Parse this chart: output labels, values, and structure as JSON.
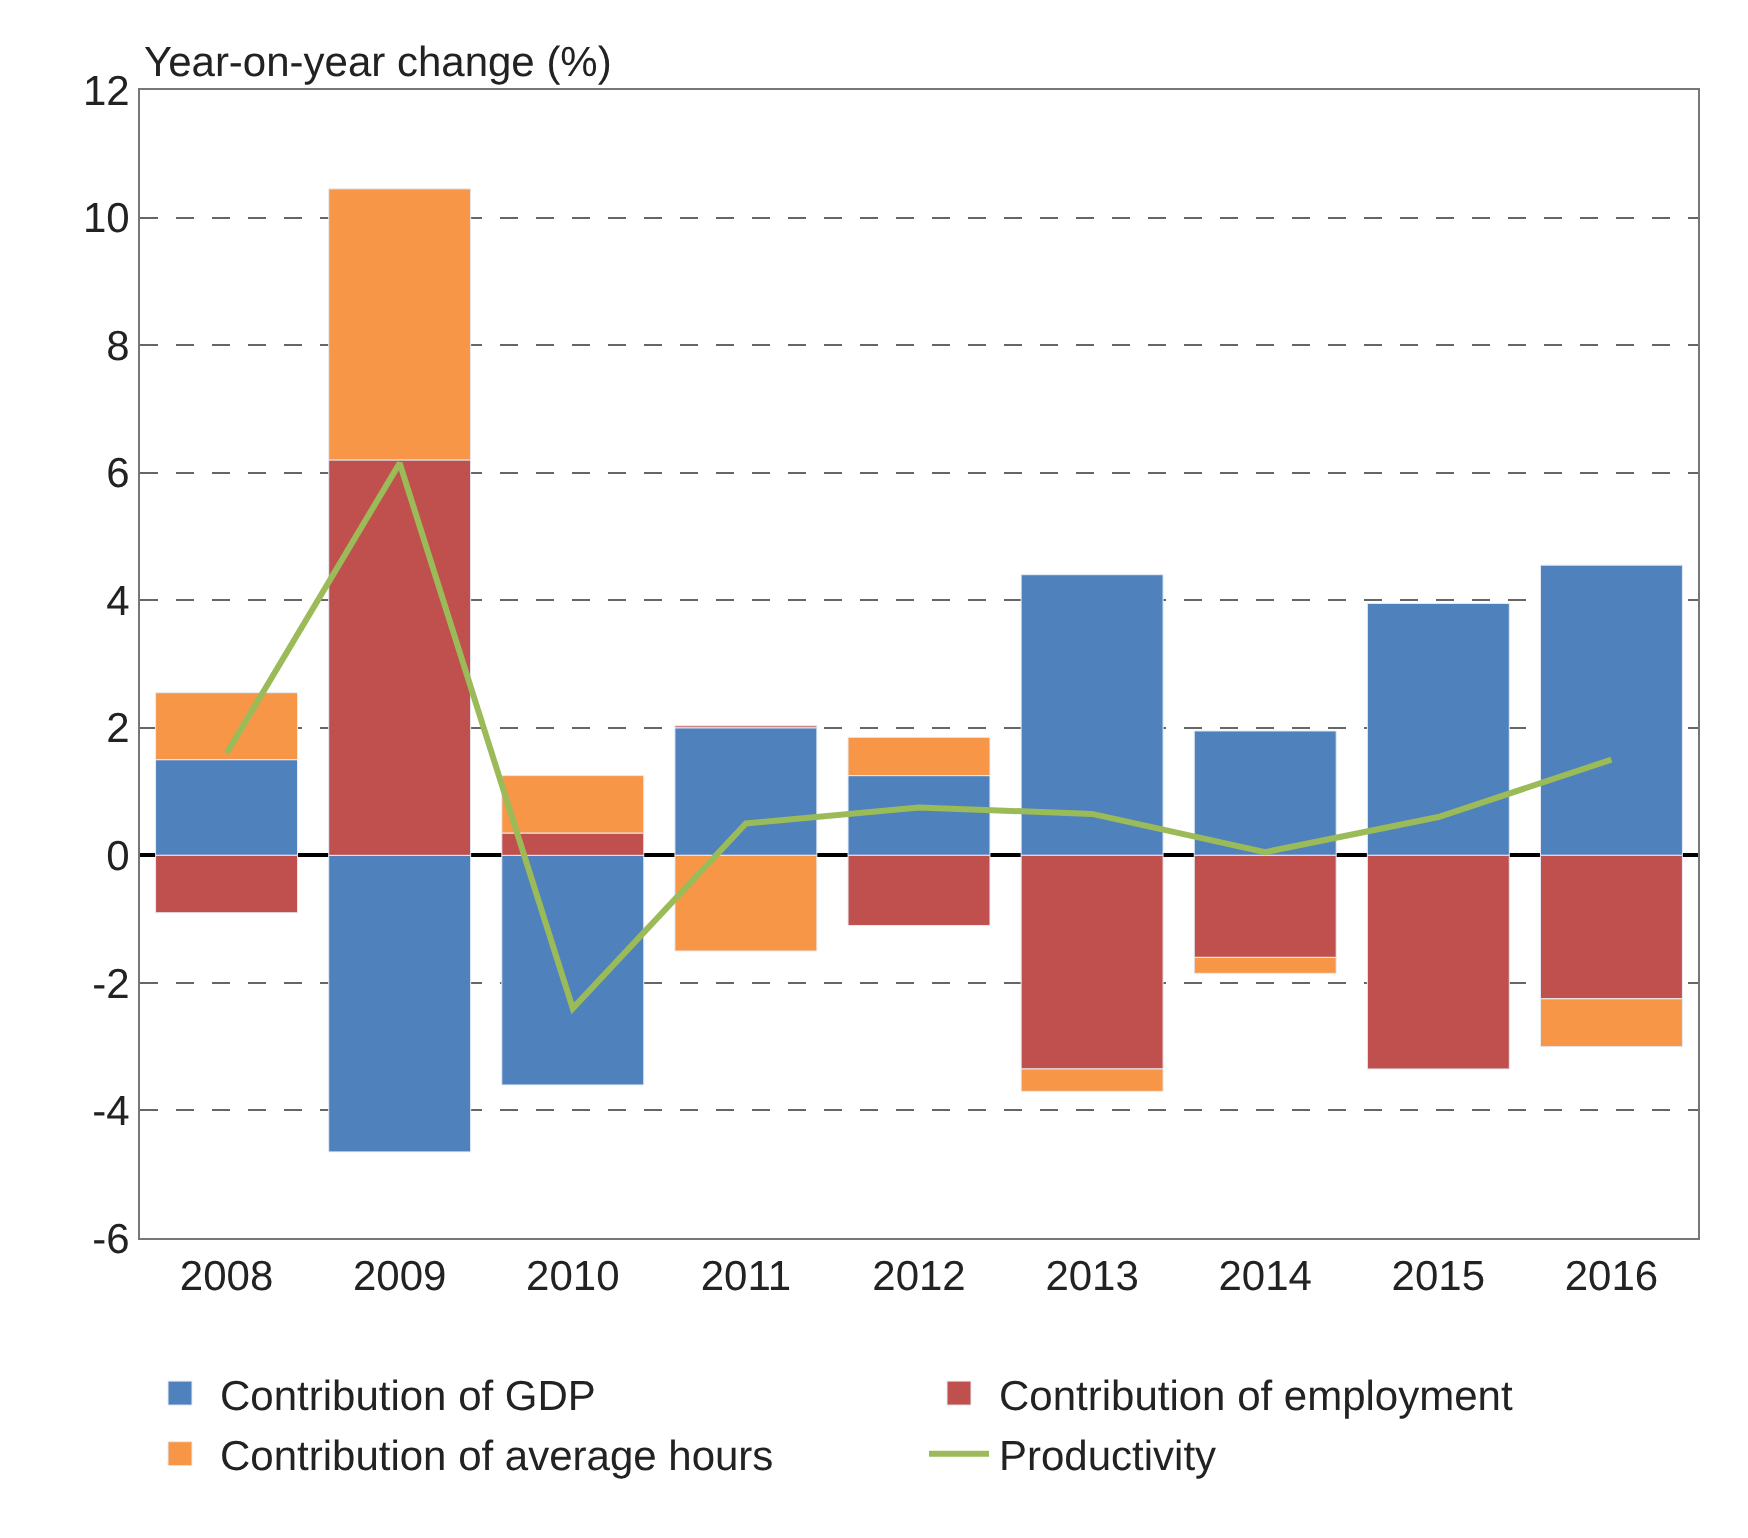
{
  "chart_data": {
    "type": "bar",
    "stacked": true,
    "ylabel": "Year-on-year change (%)",
    "categories": [
      "2008",
      "2009",
      "2010",
      "2011",
      "2012",
      "2013",
      "2014",
      "2015",
      "2016"
    ],
    "series": [
      {
        "name": "Contribution of GDP",
        "color": "#4f81bd",
        "values": [
          1.5,
          -4.65,
          -3.6,
          2.0,
          1.25,
          4.4,
          1.95,
          3.95,
          4.55
        ]
      },
      {
        "name": "Contribution of employment",
        "color": "#c0504d",
        "values": [
          -0.9,
          6.2,
          0.35,
          0.03,
          -1.1,
          -3.35,
          -1.6,
          -3.35,
          -2.25
        ]
      },
      {
        "name": "Contribution of average hours",
        "color": "#f79646",
        "values": [
          1.05,
          4.25,
          0.9,
          -1.5,
          0.6,
          -0.35,
          -0.25,
          null,
          -0.75
        ]
      },
      {
        "name": "Productivity",
        "type": "line",
        "color": "#9bbb59",
        "values": [
          1.6,
          6.15,
          -2.4,
          0.5,
          0.75,
          0.65,
          0.05,
          0.6,
          1.5
        ]
      }
    ],
    "ylim": [
      -6,
      12
    ],
    "yticks": [
      -6,
      -4,
      -2,
      0,
      2,
      4,
      6,
      8,
      10,
      12
    ],
    "grid": "y",
    "legend": "bottom"
  }
}
